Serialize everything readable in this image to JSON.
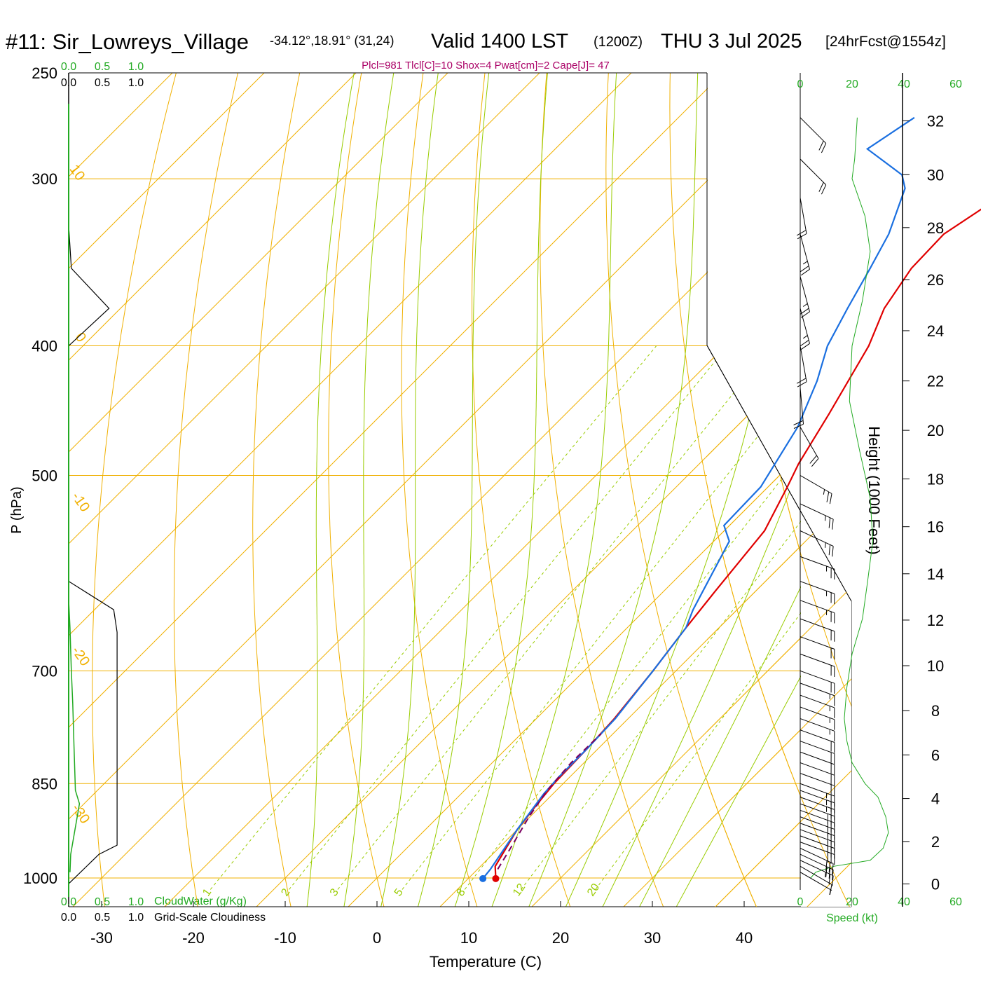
{
  "header": {
    "station": "#11: Sir_Lowreys_Village",
    "coords": "-34.12°,18.91° (31,24)",
    "valid": "Valid 1400 LST",
    "zulu": "(1200Z)",
    "date": "THU 3 Jul 2025",
    "forecast": "[24hrFcst@1554z]"
  },
  "params": "Plcl=981 Tlcl[C]=10 Shox=4 Pwat[cm]=2 Cape[J]= 47",
  "labels": {
    "ylabel": "P (hPa)",
    "xlabel": "Temperature (C)",
    "height_label": "Height (1000 Feet)",
    "speed_label": "Speed (kt)",
    "cloudwater_label": "CloudWater (g/Kg)",
    "cloudiness_label": "Grid-Scale Cloudiness"
  },
  "colors": {
    "temperature": "#e00000",
    "dewpoint": "#1a6fe0",
    "isotherm": "#f0b000",
    "dry_adiabat": "#f0b000",
    "moist_adiabat": "#99cc00",
    "mixing_ratio": "#99cc00",
    "parcel": "#7a0060",
    "cloudwater": "#22aa22",
    "cloudiness": "#000000",
    "params": "#aa0066"
  },
  "chart_data": {
    "type": "line",
    "title": "#11: Sir_Lowreys_Village",
    "xlabel": "Temperature (C)",
    "ylabel": "P (hPa)",
    "xlim": [
      -35,
      45
    ],
    "ylim": [
      1040,
      250
    ],
    "y_scale": "log",
    "x_ticks": [
      "-30",
      "-20",
      "-10",
      "0",
      "10",
      "20",
      "30",
      "40"
    ],
    "pressure_ticks": [
      "250",
      "300",
      "400",
      "500",
      "700",
      "850",
      "1000"
    ],
    "isotherm_labels": [
      "10",
      "0",
      "-10",
      "-20",
      "-30",
      "-10",
      "-20",
      "-30",
      "0",
      "10",
      "20",
      "30"
    ],
    "mixing_ratio_labels": [
      "1",
      "2",
      "3",
      "5",
      "8",
      "12",
      "20"
    ],
    "cloud_scale_top": [
      "0.0",
      "0.5",
      "1.0"
    ],
    "cloud_scale_bottom": [
      "0.0",
      "0.5",
      "1.0"
    ],
    "height_ticks": [
      "0",
      "2",
      "4",
      "6",
      "8",
      "10",
      "12",
      "14",
      "16",
      "18",
      "20",
      "22",
      "24",
      "26",
      "28",
      "30",
      "32"
    ],
    "speed_ticks": [
      "0",
      "20",
      "40",
      "60"
    ],
    "series": [
      {
        "name": "Temperature",
        "points": [
          [
            13.0,
            1001
          ],
          [
            11.6,
            980
          ],
          [
            10.0,
            920
          ],
          [
            9.4,
            880
          ],
          [
            9.0,
            850
          ],
          [
            8.8,
            800
          ],
          [
            8.5,
            760
          ],
          [
            7.5,
            700
          ],
          [
            6.4,
            650
          ],
          [
            5.6,
            610
          ],
          [
            4.4,
            550
          ],
          [
            2.1,
            510
          ],
          [
            0.8,
            490
          ],
          [
            -1.3,
            450
          ],
          [
            -4.4,
            400
          ],
          [
            -6.8,
            375
          ],
          [
            -8.2,
            350
          ],
          [
            -8.4,
            330
          ],
          [
            -6.4,
            310
          ],
          [
            -4.0,
            295
          ],
          [
            -2.4,
            285
          ],
          [
            -2.2,
            270
          ]
        ]
      },
      {
        "name": "Dewpoint",
        "points": [
          [
            11.6,
            1001
          ],
          [
            11.4,
            985
          ],
          [
            10.0,
            920
          ],
          [
            9.0,
            865
          ],
          [
            8.8,
            840
          ],
          [
            8.8,
            800
          ],
          [
            8.6,
            760
          ],
          [
            7.5,
            700
          ],
          [
            6.4,
            650
          ],
          [
            5.2,
            630
          ],
          [
            1.7,
            560
          ],
          [
            -0.6,
            545
          ],
          [
            -0.8,
            510
          ],
          [
            -3.3,
            460
          ],
          [
            -6.2,
            425
          ],
          [
            -8.9,
            400
          ],
          [
            -10.8,
            375
          ],
          [
            -12.7,
            350
          ],
          [
            -14.4,
            330
          ],
          [
            -17.6,
            305
          ],
          [
            -19.4,
            298
          ],
          [
            -26.0,
            285
          ],
          [
            -24.3,
            270
          ]
        ]
      },
      {
        "name": "Parcel",
        "points": [
          [
            12.2,
            985
          ],
          [
            11.3,
            950
          ],
          [
            9.9,
            900
          ],
          [
            9.0,
            860
          ],
          [
            8.6,
            820
          ],
          [
            8.7,
            780
          ]
        ]
      }
    ],
    "cloudwater": [
      [
        0.02,
        990
      ],
      [
        0.03,
        960
      ],
      [
        0.16,
        880
      ],
      [
        0.1,
        860
      ],
      [
        0.08,
        800
      ],
      [
        0.06,
        740
      ],
      [
        0.04,
        700
      ],
      [
        0.02,
        650
      ],
      [
        0.0,
        620
      ]
    ],
    "cloudiness": [
      [
        0.0,
        1010
      ],
      [
        0.45,
        960
      ],
      [
        0.72,
        945
      ],
      [
        0.72,
        845
      ],
      [
        0.72,
        655
      ],
      [
        0.67,
        630
      ],
      [
        0.0,
        600
      ],
      [
        0.0,
        400
      ],
      [
        0.6,
        375
      ],
      [
        0.04,
        350
      ],
      [
        0.0,
        325
      ]
    ],
    "wind_speed": [
      [
        4,
        1000
      ],
      [
        6,
        990
      ],
      [
        13,
        980
      ],
      [
        27,
        970
      ],
      [
        32,
        950
      ],
      [
        34,
        925
      ],
      [
        33,
        900
      ],
      [
        30,
        870
      ],
      [
        25,
        850
      ],
      [
        20,
        820
      ],
      [
        18,
        790
      ],
      [
        17,
        760
      ],
      [
        18,
        720
      ],
      [
        20,
        680
      ],
      [
        24,
        640
      ],
      [
        26,
        600
      ],
      [
        28,
        560
      ],
      [
        27,
        520
      ],
      [
        23,
        480
      ],
      [
        19,
        440
      ],
      [
        20,
        400
      ],
      [
        24,
        370
      ],
      [
        27,
        340
      ],
      [
        25,
        320
      ],
      [
        20,
        300
      ],
      [
        21,
        290
      ],
      [
        22,
        270
      ]
    ],
    "wind_barbs": [
      {
        "p": 990,
        "spd": 5,
        "dir": 300
      },
      {
        "p": 980,
        "spd": 10,
        "dir": 300
      },
      {
        "p": 970,
        "spd": 25,
        "dir": 295
      },
      {
        "p": 960,
        "spd": 30,
        "dir": 295
      },
      {
        "p": 950,
        "spd": 30,
        "dir": 295
      },
      {
        "p": 940,
        "spd": 30,
        "dir": 290
      },
      {
        "p": 930,
        "spd": 30,
        "dir": 290
      },
      {
        "p": 920,
        "spd": 30,
        "dir": 290
      },
      {
        "p": 910,
        "spd": 30,
        "dir": 290
      },
      {
        "p": 900,
        "spd": 30,
        "dir": 290
      },
      {
        "p": 890,
        "spd": 30,
        "dir": 290
      },
      {
        "p": 880,
        "spd": 30,
        "dir": 290
      },
      {
        "p": 870,
        "spd": 25,
        "dir": 290
      },
      {
        "p": 860,
        "spd": 25,
        "dir": 290
      },
      {
        "p": 850,
        "spd": 25,
        "dir": 290
      },
      {
        "p": 835,
        "spd": 20,
        "dir": 290
      },
      {
        "p": 820,
        "spd": 20,
        "dir": 290
      },
      {
        "p": 805,
        "spd": 20,
        "dir": 290
      },
      {
        "p": 790,
        "spd": 20,
        "dir": 290
      },
      {
        "p": 775,
        "spd": 20,
        "dir": 290
      },
      {
        "p": 760,
        "spd": 15,
        "dir": 290
      },
      {
        "p": 745,
        "spd": 15,
        "dir": 290
      },
      {
        "p": 730,
        "spd": 15,
        "dir": 290
      },
      {
        "p": 715,
        "spd": 15,
        "dir": 290
      },
      {
        "p": 700,
        "spd": 20,
        "dir": 290
      },
      {
        "p": 680,
        "spd": 20,
        "dir": 290
      },
      {
        "p": 660,
        "spd": 20,
        "dir": 290
      },
      {
        "p": 640,
        "spd": 20,
        "dir": 290
      },
      {
        "p": 620,
        "spd": 25,
        "dir": 290
      },
      {
        "p": 600,
        "spd": 25,
        "dir": 290
      },
      {
        "p": 575,
        "spd": 25,
        "dir": 290
      },
      {
        "p": 550,
        "spd": 25,
        "dir": 295
      },
      {
        "p": 525,
        "spd": 25,
        "dir": 295
      },
      {
        "p": 500,
        "spd": 25,
        "dir": 300
      },
      {
        "p": 460,
        "spd": 20,
        "dir": 330
      },
      {
        "p": 430,
        "spd": 20,
        "dir": 355
      },
      {
        "p": 400,
        "spd": 20,
        "dir": 350
      },
      {
        "p": 375,
        "spd": 25,
        "dir": 345
      },
      {
        "p": 355,
        "spd": 25,
        "dir": 345
      },
      {
        "p": 330,
        "spd": 25,
        "dir": 345
      },
      {
        "p": 310,
        "spd": 20,
        "dir": 350
      },
      {
        "p": 290,
        "spd": 20,
        "dir": 315
      },
      {
        "p": 270,
        "spd": 20,
        "dir": 315
      }
    ]
  }
}
